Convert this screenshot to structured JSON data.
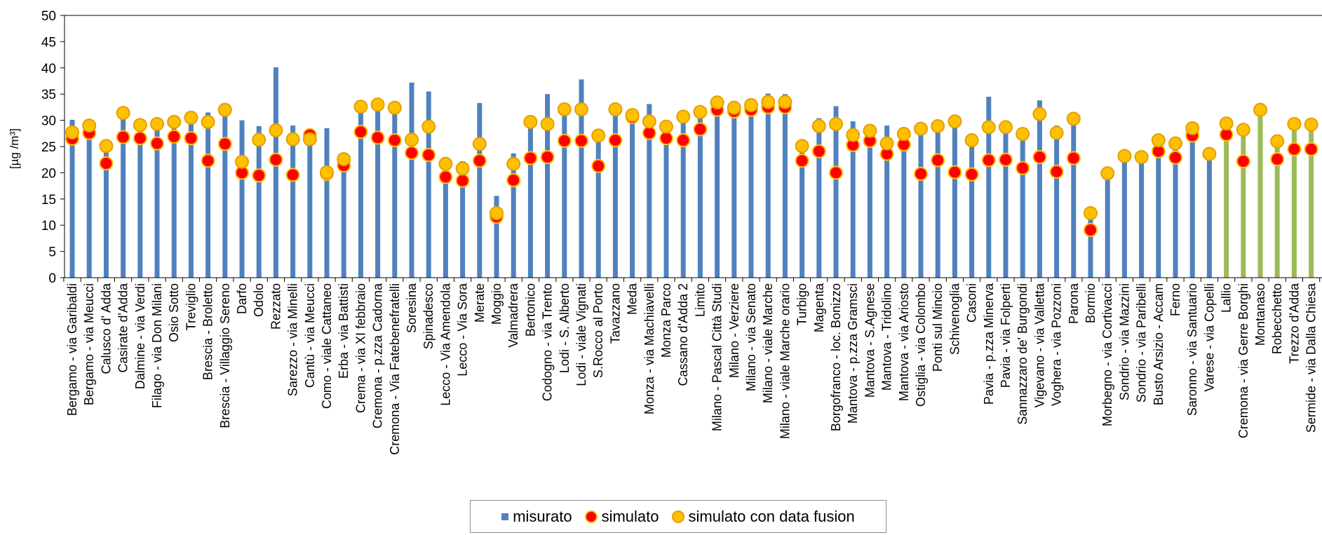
{
  "chart_data": {
    "type": "bar",
    "ylabel": "[µg /m³]",
    "ylim": [
      0,
      50
    ],
    "yticks": [
      0,
      5,
      10,
      15,
      20,
      25,
      30,
      35,
      40,
      45,
      50
    ],
    "grid": false,
    "legend_position": "bottom",
    "colors": {
      "misurato": "#4f81bd",
      "misurato_alt": "#9bbb59",
      "simulato_fill": "#ff0000",
      "simulato_edge": "#ffc000",
      "fusion_fill": "#ffc000",
      "fusion_edge": "#e3a000"
    },
    "categories": [
      "Bergamo - via Garibaldi",
      "Bergamo - via Meucci",
      "Calusco d' Adda",
      "Casirate d'Adda",
      "Dalmine - via Verdi",
      "Filago - via Don Milani",
      "Osio Sotto",
      "Treviglio",
      "Brescia - Broletto",
      "Brescia - Villaggio Sereno",
      "Darfo",
      "Odolo",
      "Rezzato",
      "Sarezzo - via Minelli",
      "Cantù - via Meucci",
      "Como - viale Cattaneo",
      "Erba - via Battisti",
      "Crema - via XI febbraio",
      "Cremona - p.zza Cadorna",
      "Cremona - Via Fatebenefratelli",
      "Soresina",
      "Spinadesco",
      "Lecco - Via Amendola",
      "Lecco - Via Sora",
      "Merate",
      "Moggio",
      "Valmadrera",
      "Bertonico",
      "Codogno - via Trento",
      "Lodi - S. Alberto",
      "Lodi - viale Vignati",
      "S.Rocco al Porto",
      "Tavazzano",
      "Meda",
      "Monza - via Machiavelli",
      "Monza Parco",
      "Cassano d'Adda 2",
      "Limito",
      "Milano - Pascal Città Studi",
      "Milano - Verziere",
      "Milano - via Senato",
      "Milano - viale Marche",
      "Milano - viale Marche orario",
      "Turbigo",
      "Magenta",
      "Borgofranco - loc. Bonizzo",
      "Mantova - p.zza Gramsci",
      "Mantova - S.Agnese",
      "Mantova - Tridolino",
      "Mantova - via Ariosto",
      "Ostiglia - via Colombo",
      "Ponti sul Mincio",
      "Schivenoglia",
      "Casoni",
      "Pavia - p.zza Minerva",
      "Pavia - via Folperti",
      "Sannazzaro de' Burgondi",
      "Vigevano - via Valletta",
      "Voghera - via Pozzoni",
      "Parona",
      "Bormio",
      "Morbegno - via Cortivacci",
      "Sondrio - via Mazzini",
      "Sondrio - via Paribelli",
      "Busto Arsizio - Accam",
      "Ferno",
      "Saronno - via Santuario",
      "Varese - via Copelli",
      "Lallio",
      "Cremona - via Gerre Borghi",
      "Montanaso",
      "Robecchetto",
      "Trezzo d'Adda",
      "Sermide - via Dalla Chiesa"
    ],
    "series": [
      {
        "name": "misurato",
        "values": [
          30.1,
          29.1,
          25.2,
          31.5,
          29.1,
          29.4,
          29.6,
          30.6,
          31.5,
          31.9,
          30.0,
          28.9,
          40.1,
          29.0,
          27.5,
          28.5,
          22.2,
          32.6,
          33.0,
          33.5,
          37.2,
          35.5,
          21.3,
          22.2,
          33.3,
          15.6,
          23.7,
          29.7,
          35.0,
          31.5,
          37.8,
          27.1,
          32.2,
          31.0,
          33.1,
          28.5,
          30.3,
          31.5,
          33.4,
          32.5,
          33.0,
          35.1,
          35.0,
          25.1,
          30.4,
          32.7,
          29.8,
          28.0,
          29.0,
          28.7,
          28.2,
          28.8,
          29.5,
          26.0,
          34.5,
          29.5,
          27.5,
          33.8,
          29.0,
          30.2,
          12.3,
          20.0,
          23.3,
          23.0,
          26.2,
          25.5,
          28.2,
          23.5,
          29.5,
          28.2,
          32.0,
          27.3,
          29.5,
          29.0
        ]
      },
      {
        "name": "simulato",
        "values": [
          26.5,
          27.6,
          21.8,
          26.8,
          26.6,
          25.6,
          26.9,
          26.6,
          22.3,
          25.5,
          20.0,
          19.5,
          22.5,
          19.6,
          27.2,
          19.8,
          21.4,
          27.8,
          26.7,
          26.2,
          23.8,
          23.4,
          19.2,
          18.5,
          22.3,
          11.6,
          18.6,
          22.8,
          23.0,
          26.1,
          26.1,
          21.3,
          26.2,
          30.6,
          27.6,
          26.6,
          26.2,
          28.3,
          32.0,
          31.7,
          32.0,
          32.5,
          32.5,
          22.3,
          24.1,
          20.0,
          25.3,
          26.1,
          23.6,
          25.4,
          19.8,
          22.4,
          20.1,
          19.7,
          22.4,
          22.5,
          20.9,
          23.0,
          20.2,
          22.8,
          9.1,
          null,
          null,
          null,
          24.1,
          22.9,
          27.1,
          null,
          27.3,
          22.2,
          null,
          22.6,
          24.5,
          24.5
        ]
      },
      {
        "name": "simulato con data fusion",
        "values": [
          27.7,
          29.0,
          25.1,
          31.4,
          29.1,
          29.3,
          29.7,
          30.5,
          29.7,
          32.0,
          22.1,
          26.3,
          28.1,
          26.4,
          26.4,
          20.1,
          22.6,
          32.6,
          33.0,
          32.4,
          26.3,
          28.8,
          21.7,
          20.8,
          25.5,
          12.3,
          21.7,
          29.7,
          29.3,
          32.1,
          32.1,
          27.1,
          32.1,
          31.0,
          29.8,
          28.8,
          30.7,
          31.6,
          33.4,
          32.4,
          32.9,
          33.5,
          33.5,
          25.1,
          28.9,
          29.3,
          27.2,
          28.0,
          25.6,
          27.4,
          28.4,
          28.9,
          29.8,
          26.2,
          28.7,
          28.7,
          27.4,
          31.2,
          27.6,
          30.3,
          12.3,
          19.9,
          23.2,
          23.0,
          26.2,
          25.6,
          28.5,
          23.6,
          29.4,
          28.2,
          32.0,
          26.0,
          29.3,
          29.2
        ]
      }
    ],
    "bar_color_index": [
      0,
      0,
      0,
      0,
      0,
      0,
      0,
      0,
      0,
      0,
      0,
      0,
      0,
      0,
      0,
      0,
      0,
      0,
      0,
      0,
      0,
      0,
      0,
      0,
      0,
      0,
      0,
      0,
      0,
      0,
      0,
      0,
      0,
      0,
      0,
      0,
      0,
      0,
      0,
      0,
      0,
      0,
      0,
      0,
      0,
      0,
      0,
      0,
      0,
      0,
      0,
      0,
      0,
      0,
      0,
      0,
      0,
      0,
      0,
      0,
      0,
      0,
      0,
      0,
      0,
      0,
      0,
      0,
      1,
      1,
      1,
      1,
      1,
      1
    ]
  },
  "legend": {
    "misurato": "misurato",
    "simulato": "simulato",
    "fusion": "simulato con data fusion"
  }
}
